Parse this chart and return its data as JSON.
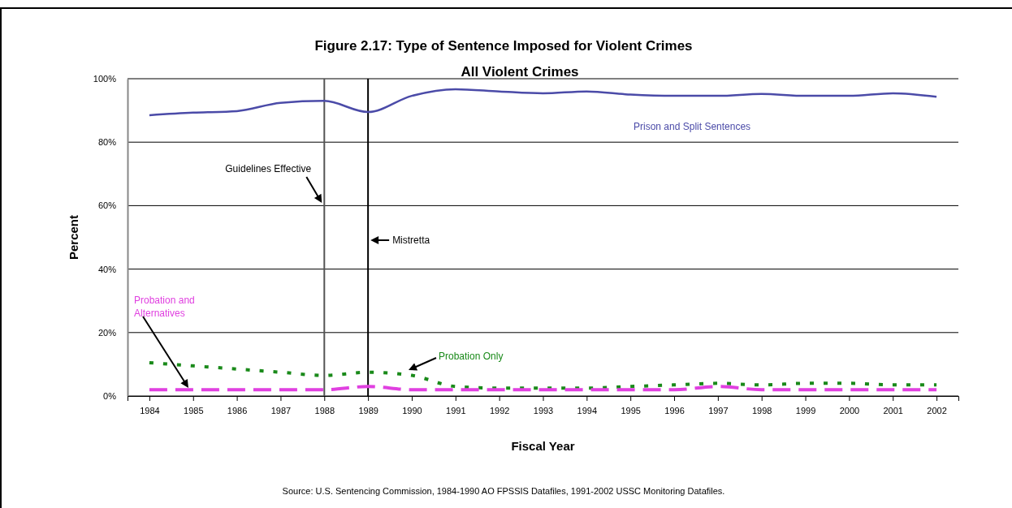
{
  "chart_data": {
    "type": "line",
    "title": "Figure 2.17: Type of Sentence Imposed for Violent Crimes",
    "subtitle": "All Violent Crimes",
    "xlabel": "Fiscal Year",
    "ylabel": "Percent",
    "x": [
      1984,
      1985,
      1986,
      1987,
      1988,
      1989,
      1990,
      1991,
      1992,
      1993,
      1994,
      1995,
      1996,
      1997,
      1998,
      1999,
      2000,
      2001,
      2002
    ],
    "xlim": [
      1983.5,
      2002.5
    ],
    "xticks": [
      1984,
      1985,
      1986,
      1987,
      1988,
      1989,
      1990,
      1991,
      1992,
      1993,
      1994,
      1995,
      1996,
      1997,
      1998,
      1999,
      2000,
      2001,
      2002
    ],
    "ylim": [
      0,
      100
    ],
    "yticks": [
      {
        "value": 0,
        "label": "0%"
      },
      {
        "value": 20,
        "label": "20%"
      },
      {
        "value": 40,
        "label": "40%"
      },
      {
        "value": 60,
        "label": "60%"
      },
      {
        "value": 80,
        "label": "80%"
      },
      {
        "value": 100,
        "label": "100%"
      }
    ],
    "grid": "y",
    "marker": "none",
    "series": [
      {
        "name": "Prison and Split Sentences",
        "color": "#4b4ba8",
        "line_style": "solid",
        "values": [
          88.5,
          89.3,
          89.8,
          92.4,
          93,
          89.5,
          94.6,
          96.7,
          96,
          95.4,
          96,
          95,
          94.6,
          94.6,
          95.2,
          94.6,
          94.6,
          95.4,
          94.3
        ]
      },
      {
        "name": "Probation Only",
        "color": "#1a8a1a",
        "line_style": "dotted",
        "values": [
          10.5,
          9.5,
          8.5,
          7.5,
          6.5,
          7.5,
          6.5,
          3,
          2.5,
          2.5,
          2.5,
          3,
          3.5,
          4,
          3.5,
          4,
          4,
          3.5,
          3.5
        ]
      },
      {
        "name": "Probation and Alternatives",
        "color": "#e040e0",
        "line_style": "dashed",
        "values": [
          2,
          2,
          2,
          2,
          2,
          3,
          2,
          2,
          2,
          2,
          2,
          2,
          2,
          3,
          2,
          2,
          2,
          2,
          2
        ]
      }
    ],
    "ref_lines": [
      {
        "axis": "x",
        "value": 1988,
        "label": "Guidelines Effective",
        "color": "#555555"
      },
      {
        "axis": "x",
        "value": 1989,
        "label": "Mistretta",
        "color": "#000000"
      }
    ],
    "annotations": [
      "Source: U.S. Sentencing Commission, 1984-1990 AO FPSSIS Datafiles, 1991-2002 USSC Monitoring Datafiles."
    ]
  }
}
